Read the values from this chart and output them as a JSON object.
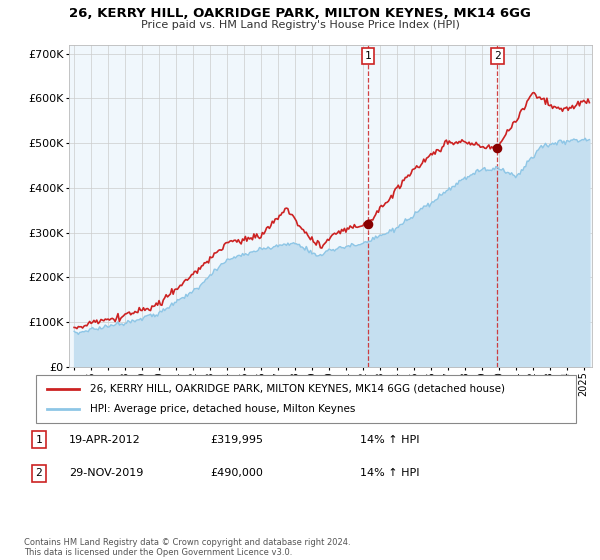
{
  "title": "26, KERRY HILL, OAKRIDGE PARK, MILTON KEYNES, MK14 6GG",
  "subtitle": "Price paid vs. HM Land Registry's House Price Index (HPI)",
  "legend_line1": "26, KERRY HILL, OAKRIDGE PARK, MILTON KEYNES, MK14 6GG (detached house)",
  "legend_line2": "HPI: Average price, detached house, Milton Keynes",
  "marker1_date": "19-APR-2012",
  "marker1_price": 319995,
  "marker1_label": "14% ↑ HPI",
  "marker1_year": 2012.3,
  "marker2_date": "29-NOV-2019",
  "marker2_price": 490000,
  "marker2_label": "14% ↑ HPI",
  "marker2_year": 2019.92,
  "footnote": "Contains HM Land Registry data © Crown copyright and database right 2024.\nThis data is licensed under the Open Government Licence v3.0.",
  "hpi_color": "#8ec6e6",
  "hpi_fill_color": "#c5dff0",
  "price_color": "#cc2222",
  "marker_color": "#880000",
  "plot_bg": "#f0f7fc",
  "grid_color": "#cccccc",
  "ylim": [
    0,
    720000
  ],
  "xlim_start": 1994.7,
  "xlim_end": 2025.5
}
